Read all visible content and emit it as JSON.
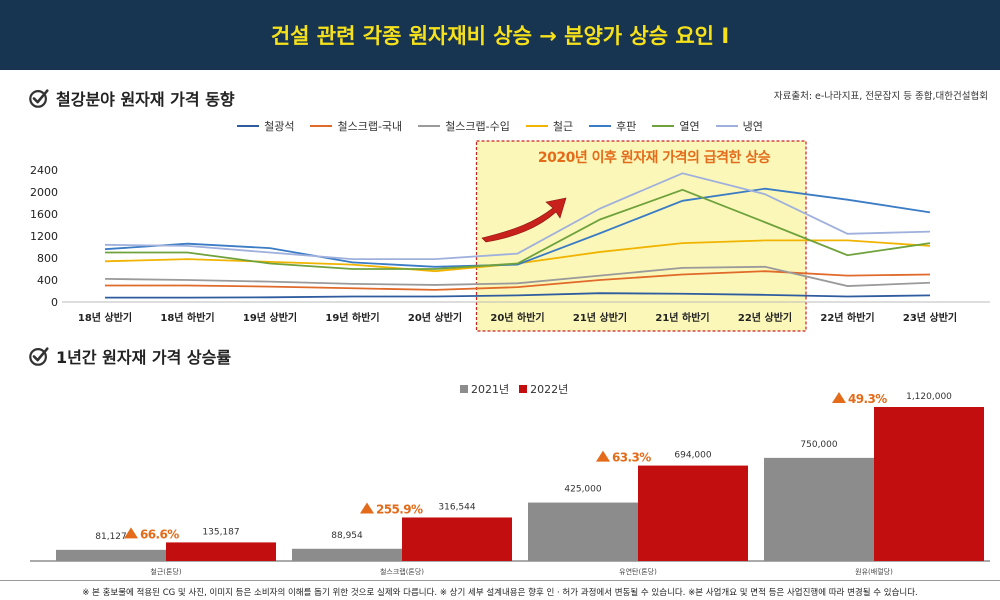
{
  "banner": {
    "title": "건설 관련 각종 원자재비 상승 → 분양가 상승 요인 I"
  },
  "section1": {
    "title": "철강분야 원자재 가격 동향",
    "source": "자료출처:  e-나라지표, 전문잡지 등 종합,대한건설협회"
  },
  "section2": {
    "title": "1년간 원자재 가격 상승률"
  },
  "highlight": {
    "text": "2020년 이후 원자재 가격의 급격한 상승"
  },
  "footer": {
    "text": "※ 본 홍보물에 적용된 CG 및 사진, 이미지 등은 소비자의 이해를 돕기 위한 것으로 실제와 다릅니다. ※ 상기 세부 설계내용은 향후 인 · 허가 과정에서 변동될 수 있습니다. ※본 사업개요 및 면적 등은 사업진행에 따라 변경될 수 있습니다."
  },
  "icons": {
    "check": "check-circle-icon",
    "arrow": "curved-arrow-icon",
    "triangle": "triangle-up-icon"
  },
  "chart_data": [
    {
      "type": "line",
      "categories": [
        "18년 상반기",
        "18년 하반기",
        "19년 상반기",
        "19년 하반기",
        "20년 상반기",
        "20년 하반기",
        "21년 상반기",
        "21년 하반기",
        "22년 상반기",
        "22년 하반기",
        "23년 상반기"
      ],
      "ylim": [
        0,
        2400
      ],
      "yticks": [
        0,
        400,
        800,
        1200,
        1600,
        2000,
        2400
      ],
      "grid": false,
      "legend": "top",
      "highlight_range": [
        "20년 하반기",
        "22년 상반기"
      ],
      "series": [
        {
          "name": "철광석",
          "color": "#2e5c9e",
          "values": [
            80,
            80,
            85,
            100,
            100,
            120,
            160,
            150,
            130,
            100,
            120
          ]
        },
        {
          "name": "철스크랩-국내",
          "color": "#e06a2a",
          "values": [
            300,
            300,
            280,
            250,
            220,
            270,
            400,
            500,
            560,
            480,
            500
          ]
        },
        {
          "name": "철스크랩-수입",
          "color": "#9a9a9a",
          "values": [
            420,
            400,
            370,
            330,
            310,
            340,
            480,
            620,
            640,
            290,
            350
          ]
        },
        {
          "name": "철근",
          "color": "#f0b400",
          "values": [
            740,
            780,
            730,
            680,
            560,
            700,
            910,
            1070,
            1120,
            1120,
            1020
          ]
        },
        {
          "name": "후판",
          "color": "#3b7cc4",
          "values": [
            960,
            1060,
            980,
            720,
            640,
            680,
            1250,
            1840,
            2060,
            1860,
            1630
          ]
        },
        {
          "name": "열연",
          "color": "#6fa23c",
          "values": [
            900,
            900,
            700,
            600,
            600,
            700,
            1500,
            2040,
            1450,
            850,
            1070
          ]
        },
        {
          "name": "냉연",
          "color": "#9fb0dc",
          "values": [
            1040,
            1020,
            900,
            780,
            780,
            880,
            1700,
            2340,
            1960,
            1240,
            1280
          ]
        }
      ]
    },
    {
      "type": "bar",
      "categories": [
        "철근(톤당)",
        "철스크랩(톤당)",
        "유연탄(톤당)",
        "원유(배럴당)"
      ],
      "series": [
        {
          "name": "2021년",
          "color": "#8c8c8c",
          "values": [
            81127,
            88954,
            425000,
            750000
          ],
          "labels": [
            "81,127",
            "88,954",
            "425,000",
            "750,000"
          ]
        },
        {
          "name": "2022년",
          "color": "#c20e0e",
          "values": [
            135187,
            316544,
            694000,
            1120000
          ],
          "labels": [
            "135,187",
            "316,544",
            "694,000",
            "1,120,000"
          ]
        }
      ],
      "growth_labels": [
        "66.6%",
        "255.9%",
        "63.3%",
        "49.3%"
      ],
      "ylim": [
        0,
        1200000
      ],
      "legend": "top"
    }
  ]
}
